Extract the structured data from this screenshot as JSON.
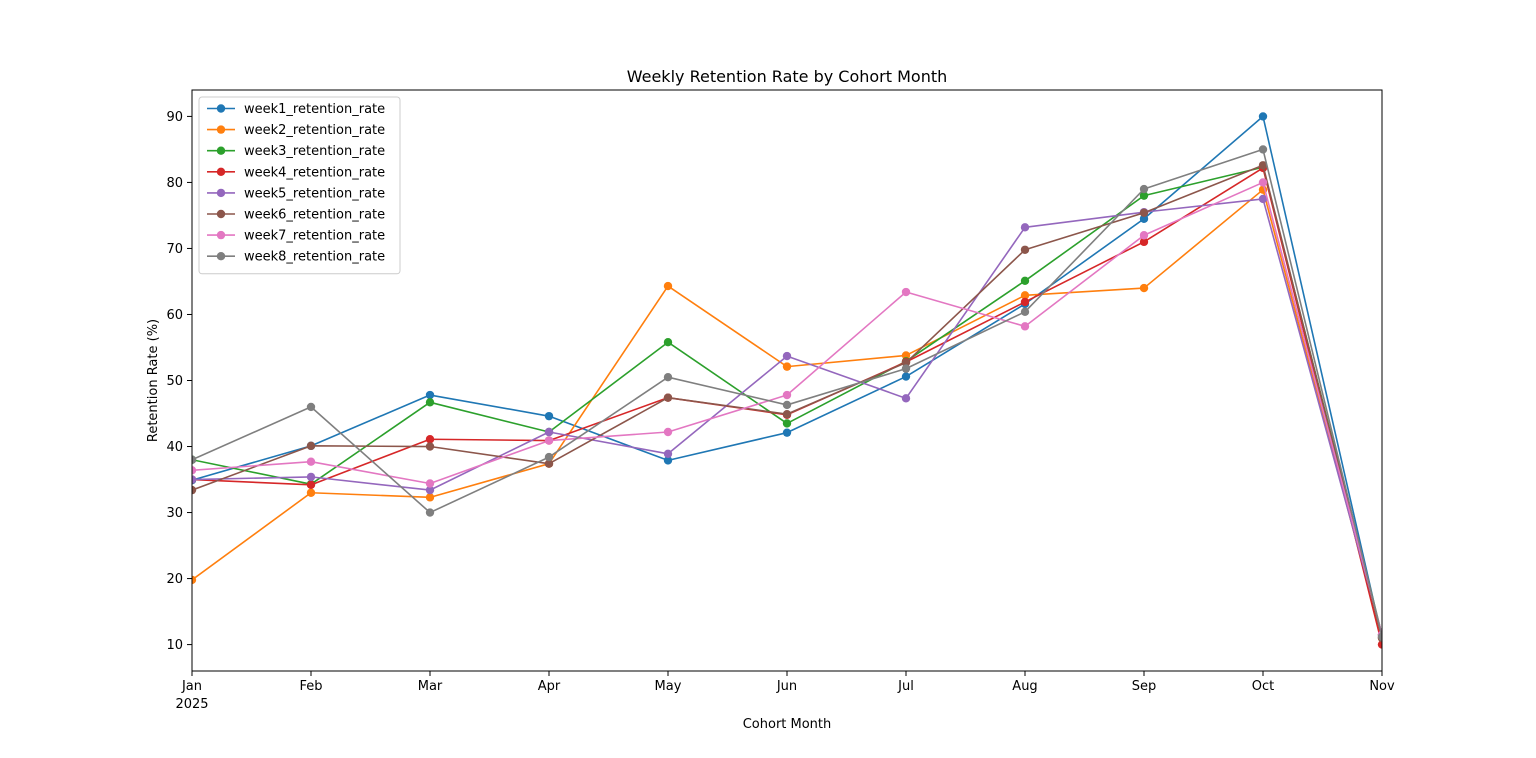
{
  "chart_data": {
    "type": "line",
    "title": "Weekly Retention Rate by Cohort Month",
    "xlabel": "Cohort Month",
    "ylabel": "Retention Rate (%)",
    "categories": [
      "Jan",
      "Feb",
      "Mar",
      "Apr",
      "May",
      "Jun",
      "Jul",
      "Aug",
      "Sep",
      "Oct",
      "Nov"
    ],
    "year_label": "2025",
    "ylim": [
      6,
      94
    ],
    "yticks": [
      10,
      20,
      30,
      40,
      50,
      60,
      70,
      80,
      90
    ],
    "grid": false,
    "legend_position": "top-left",
    "marker": "circle",
    "series": [
      {
        "name": "week1_retention_rate",
        "color": "#1f77b4",
        "values": [
          34.9,
          40.1,
          47.8,
          44.6,
          37.9,
          42.1,
          50.6,
          61.6,
          74.5,
          90.0,
          11.0
        ]
      },
      {
        "name": "week2_retention_rate",
        "color": "#ff7f0e",
        "values": [
          19.8,
          33.0,
          32.3,
          37.4,
          64.3,
          52.1,
          53.8,
          62.9,
          64.0,
          78.9,
          11.0
        ]
      },
      {
        "name": "week3_retention_rate",
        "color": "#2ca02c",
        "values": [
          38.0,
          34.3,
          46.7,
          42.2,
          55.8,
          43.5,
          52.9,
          65.1,
          78.0,
          82.3,
          11.5
        ]
      },
      {
        "name": "week4_retention_rate",
        "color": "#d62728",
        "values": [
          35.0,
          34.2,
          41.1,
          40.9,
          47.4,
          44.8,
          52.8,
          61.9,
          71.0,
          82.2,
          10.0
        ]
      },
      {
        "name": "week5_retention_rate",
        "color": "#9467bd",
        "values": [
          35.0,
          35.4,
          33.4,
          42.2,
          38.9,
          53.7,
          47.3,
          73.2,
          75.5,
          77.5,
          11.5
        ]
      },
      {
        "name": "week6_retention_rate",
        "color": "#8c564b",
        "values": [
          33.4,
          40.1,
          40.0,
          37.4,
          47.4,
          44.9,
          52.7,
          69.8,
          75.4,
          82.6,
          11.0
        ]
      },
      {
        "name": "week7_retention_rate",
        "color": "#e377c2",
        "values": [
          36.4,
          37.7,
          34.4,
          40.9,
          42.2,
          47.8,
          63.4,
          58.2,
          72.0,
          80.0,
          11.5
        ]
      },
      {
        "name": "week8_retention_rate",
        "color": "#7f7f7f",
        "values": [
          38.0,
          46.0,
          30.0,
          38.4,
          50.5,
          46.3,
          51.8,
          60.4,
          79.0,
          85.0,
          11.2
        ]
      }
    ]
  }
}
